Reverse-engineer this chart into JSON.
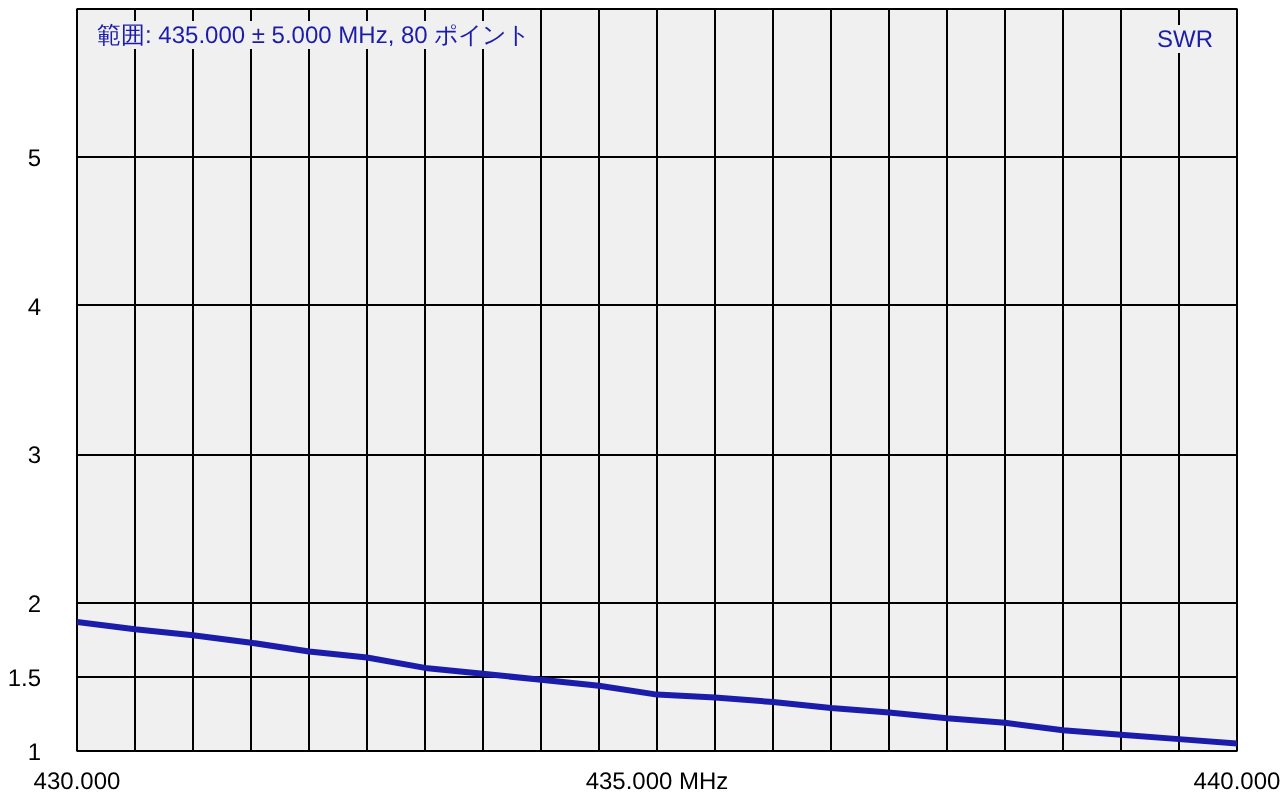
{
  "chart_data": {
    "type": "line",
    "ylabel": "SWR",
    "annotations": [
      "範囲: 435.000 ± 5.000 MHz, 80 ポイント"
    ],
    "x": [
      430,
      430.5,
      431,
      431.5,
      432,
      432.5,
      433,
      433.5,
      434,
      434.5,
      435,
      435.5,
      436,
      436.5,
      437,
      437.5,
      438,
      438.5,
      439,
      439.5,
      440
    ],
    "series": [
      {
        "color": "#1c1caa",
        "values": [
          1.87,
          1.82,
          1.78,
          1.73,
          1.67,
          1.63,
          1.56,
          1.52,
          1.48,
          1.44,
          1.38,
          1.36,
          1.33,
          1.29,
          1.26,
          1.22,
          1.19,
          1.14,
          1.11,
          1.08,
          1.05
        ]
      }
    ],
    "xlim": [
      430,
      440
    ],
    "ylim": [
      1,
      6
    ],
    "xticks": [
      {
        "value": 430,
        "label": "430.000"
      },
      {
        "value": 430.5,
        "label": null
      },
      {
        "value": 431,
        "label": null
      },
      {
        "value": 431.5,
        "label": null
      },
      {
        "value": 432,
        "label": null
      },
      {
        "value": 432.5,
        "label": null
      },
      {
        "value": 433,
        "label": null
      },
      {
        "value": 433.5,
        "label": null
      },
      {
        "value": 434,
        "label": null
      },
      {
        "value": 434.5,
        "label": null
      },
      {
        "value": 435,
        "label": "435.000 MHz"
      },
      {
        "value": 435.5,
        "label": null
      },
      {
        "value": 436,
        "label": null
      },
      {
        "value": 436.5,
        "label": null
      },
      {
        "value": 437,
        "label": null
      },
      {
        "value": 437.5,
        "label": null
      },
      {
        "value": 438,
        "label": null
      },
      {
        "value": 438.5,
        "label": null
      },
      {
        "value": 439,
        "label": null
      },
      {
        "value": 439.5,
        "label": null
      },
      {
        "value": 440,
        "label": "440.000"
      }
    ],
    "yticks": [
      1,
      1.5,
      2,
      3,
      4,
      5
    ],
    "grid": true,
    "marker": "none",
    "line_style": "solid"
  }
}
